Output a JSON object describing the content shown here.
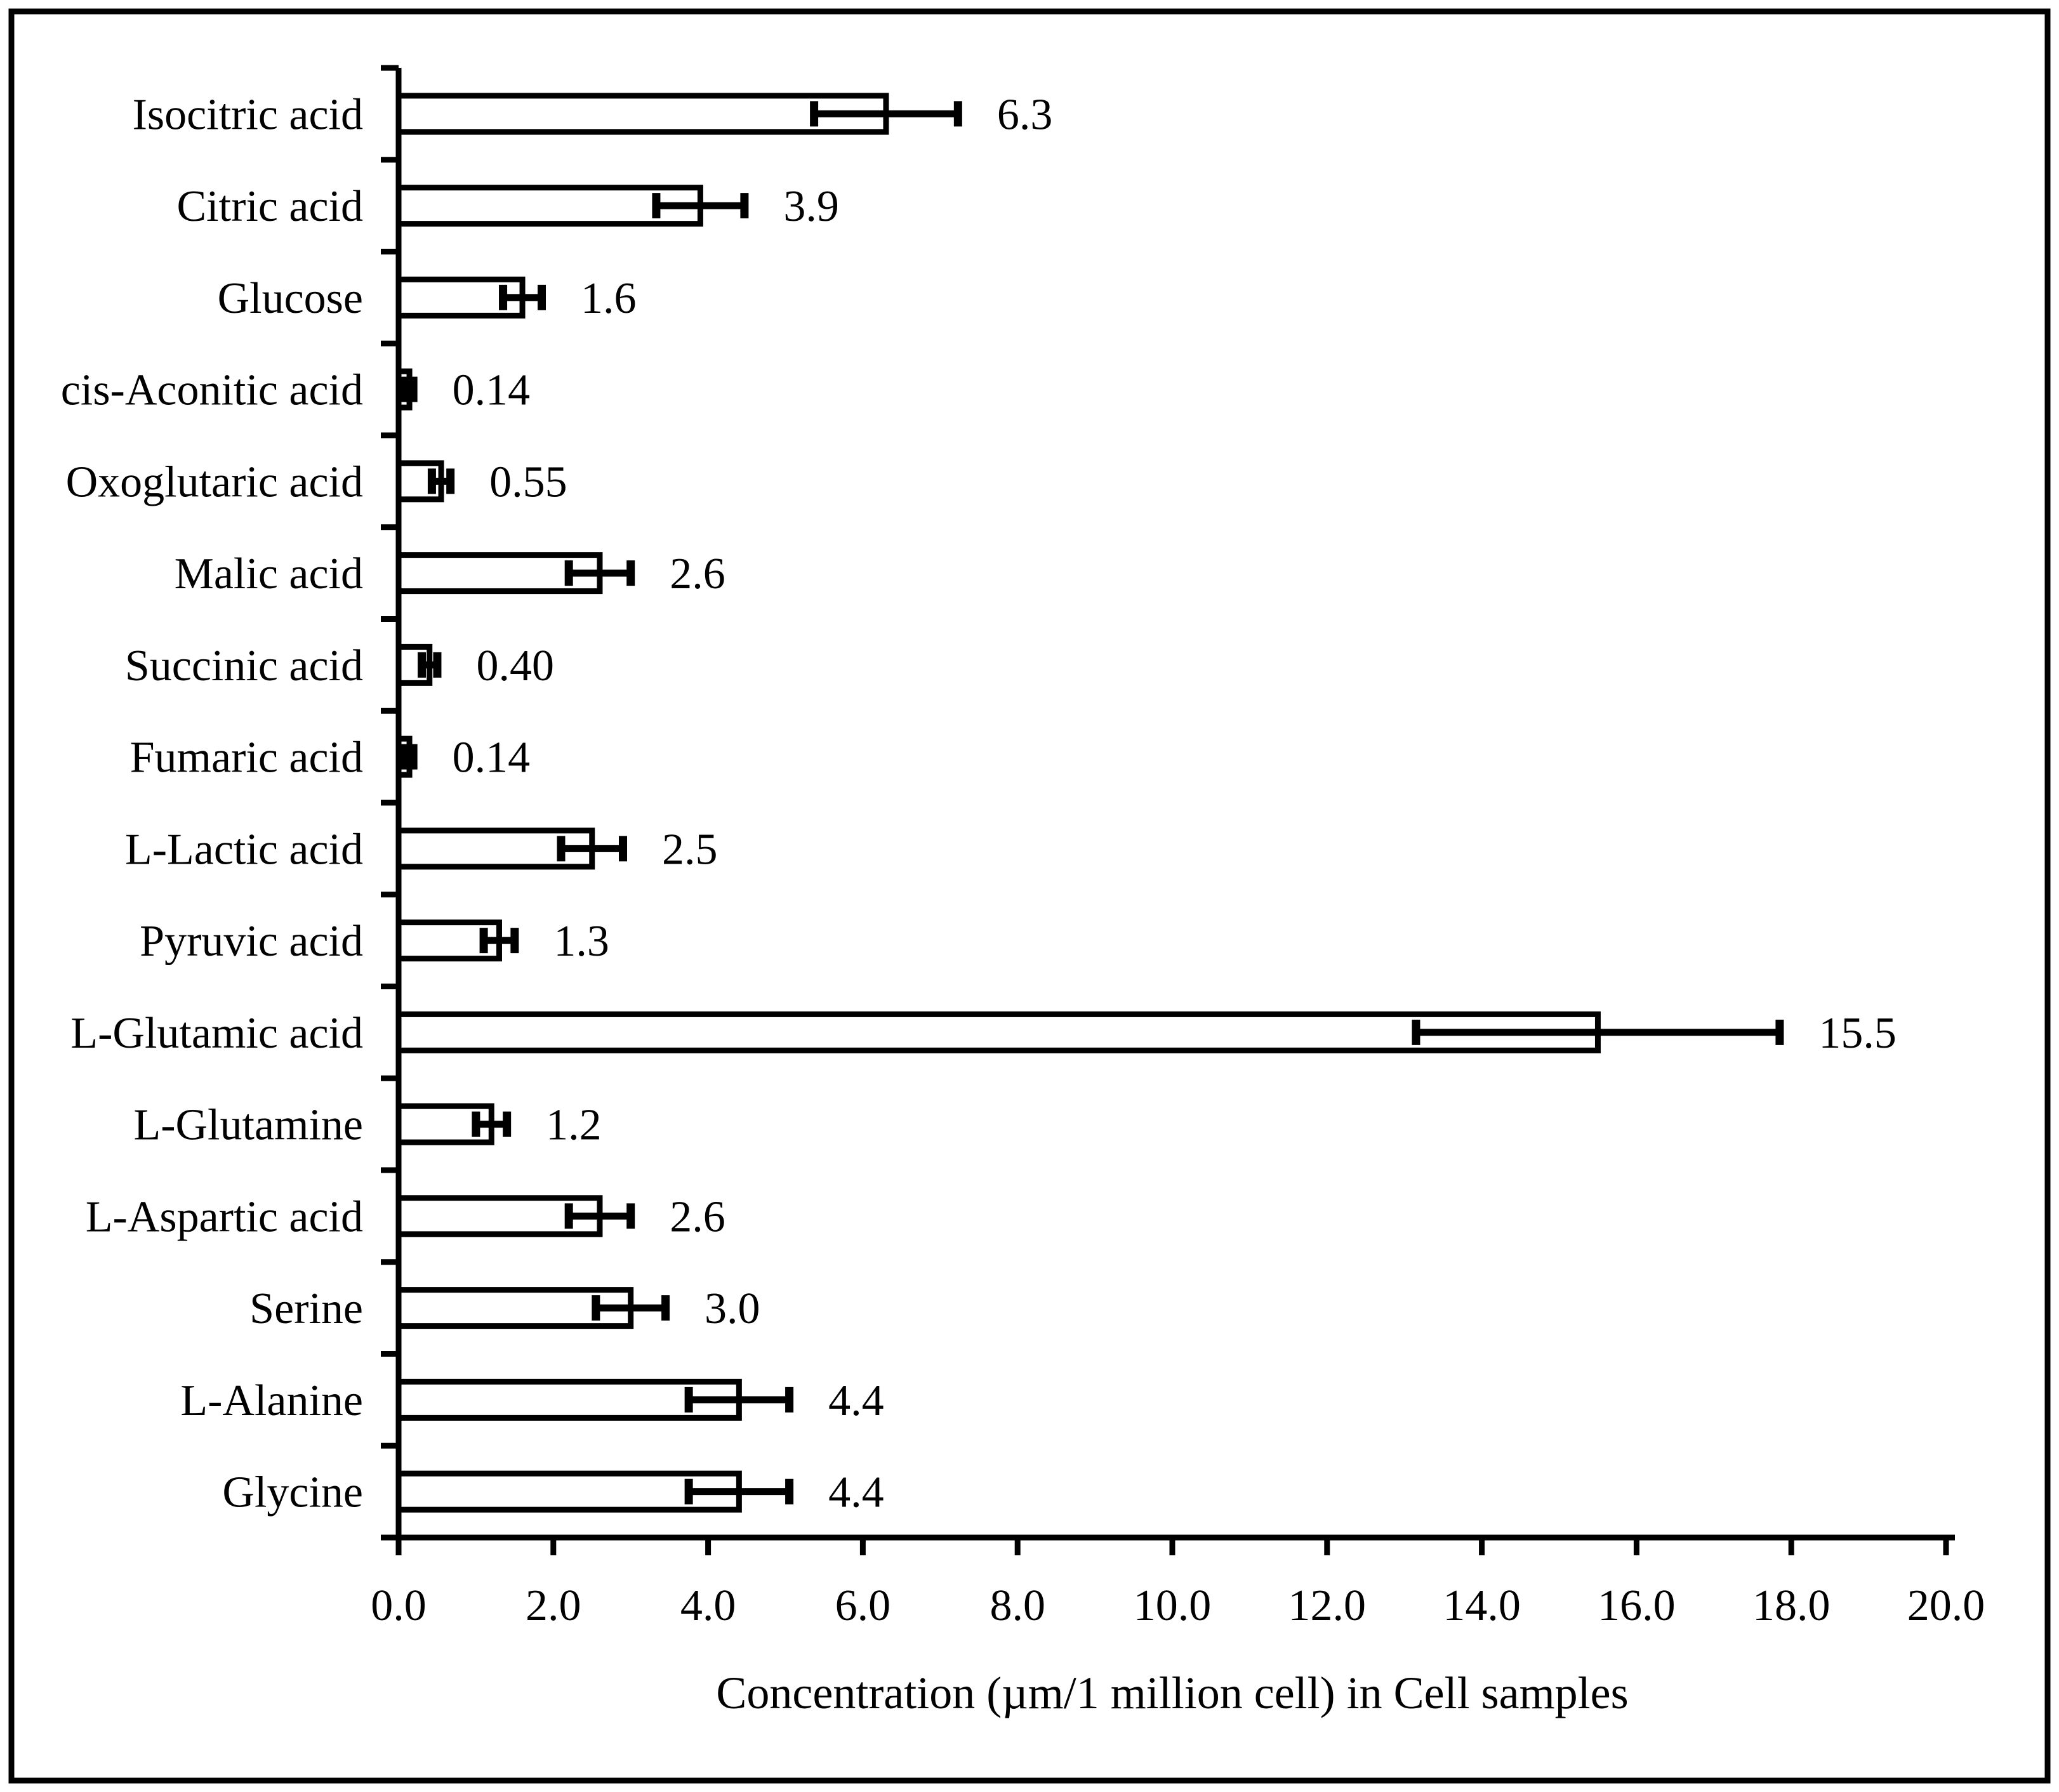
{
  "chart_data": {
    "type": "bar",
    "orientation": "horizontal",
    "title": "",
    "xlabel": "Concentration (µm/1 million cell) in Cell samples",
    "ylabel": "",
    "xlim": [
      0,
      20
    ],
    "grid": false,
    "legend": "none",
    "categories": [
      "Isocitric acid",
      "Citric acid",
      "Glucose",
      "cis-Aconitic acid",
      "Oxoglutaric acid",
      "Malic acid",
      "Succinic acid",
      "Fumaric acid",
      "L-Lactic acid",
      "Pyruvic acid",
      "L-Glutamic acid",
      "L-Glutamine",
      "L-Aspartic acid",
      "Serine",
      "L-Alanine",
      "Glycine"
    ],
    "values": [
      6.3,
      3.9,
      1.6,
      0.14,
      0.55,
      2.6,
      0.4,
      0.14,
      2.5,
      1.3,
      15.5,
      1.2,
      2.6,
      3.0,
      4.4,
      4.4
    ],
    "errors": [
      0.93,
      0.57,
      0.25,
      0.05,
      0.12,
      0.4,
      0.1,
      0.05,
      0.4,
      0.2,
      2.35,
      0.2,
      0.4,
      0.45,
      0.65,
      0.65
    ],
    "value_labels": [
      "6.3",
      "3.9",
      "1.6",
      "0.14",
      "0.55",
      "2.6",
      "0.40",
      "0.14",
      "2.5",
      "1.3",
      "15.5",
      "1.2",
      "2.6",
      "3.0",
      "4.4",
      "4.4"
    ],
    "xtick_labels": [
      "0.0",
      "2.0",
      "4.0",
      "6.0",
      "8.0",
      "10.0",
      "12.0",
      "14.0",
      "16.0",
      "18.0",
      "20.0"
    ],
    "colors": {
      "bar_fill": "#ffffff",
      "line": "#000000",
      "background": "#ffffff"
    }
  }
}
